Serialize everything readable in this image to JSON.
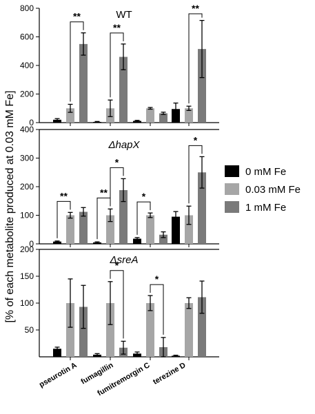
{
  "figure": {
    "ylabel": "[% of each metabolite produced at 0.03 mM Fe]",
    "legend": {
      "placement": "right",
      "entries": [
        {
          "label": "0 mM Fe",
          "color": "#000000"
        },
        {
          "label": "0.03 mM Fe",
          "color": "#a6a6a6"
        },
        {
          "label": "1 mM Fe",
          "color": "#7a7a7a"
        }
      ]
    }
  },
  "chart_data": [
    {
      "type": "bar",
      "title": "WT",
      "categories": [
        "pseurotin A",
        "fumagillin",
        "fumitremorgin C",
        "terezine D"
      ],
      "ylim": [
        0,
        800
      ],
      "yticks": [
        0,
        200,
        400,
        600,
        800
      ],
      "series": [
        {
          "name": "0 mM Fe",
          "values": [
            20,
            5,
            12,
            95
          ],
          "errors": [
            8,
            3,
            4,
            42
          ]
        },
        {
          "name": "0.03 mM Fe",
          "values": [
            100,
            100,
            100,
            100
          ],
          "errors": [
            28,
            58,
            6,
            15
          ]
        },
        {
          "name": "1 mM Fe",
          "values": [
            550,
            460,
            65,
            515
          ],
          "errors": [
            78,
            90,
            8,
            200
          ]
        }
      ],
      "significance": [
        {
          "category": 0,
          "from": 1,
          "to": 2,
          "label": "**"
        },
        {
          "category": 1,
          "from": 1,
          "to": 2,
          "label": "**"
        },
        {
          "category": 3,
          "from": 1,
          "to": 2,
          "label": "**"
        }
      ]
    },
    {
      "type": "bar",
      "title": "ΔhapX",
      "categories": [
        "pseurotin A",
        "fumagillin",
        "fumitremorgin C",
        "terezine D"
      ],
      "ylim": [
        0,
        400
      ],
      "yticks": [
        0,
        100,
        200,
        300,
        400
      ],
      "series": [
        {
          "name": "0 mM Fe",
          "values": [
            8,
            5,
            18,
            95
          ],
          "errors": [
            2,
            2,
            4,
            18
          ]
        },
        {
          "name": "0.03 mM Fe",
          "values": [
            100,
            100,
            100,
            100
          ],
          "errors": [
            10,
            22,
            8,
            32
          ]
        },
        {
          "name": "1 mM Fe",
          "values": [
            112,
            188,
            32,
            250
          ],
          "errors": [
            15,
            40,
            10,
            55
          ]
        }
      ],
      "significance": [
        {
          "category": 0,
          "from": 0,
          "to": 1,
          "label": "**"
        },
        {
          "category": 1,
          "from": 0,
          "to": 1,
          "label": "**"
        },
        {
          "category": 1,
          "from": 1,
          "to": 2,
          "label": "*"
        },
        {
          "category": 2,
          "from": 0,
          "to": 1,
          "label": "*"
        },
        {
          "category": 3,
          "from": 1,
          "to": 2,
          "label": "*"
        }
      ]
    },
    {
      "type": "bar",
      "title": "ΔsreA",
      "categories": [
        "pseurotin A",
        "fumagillin",
        "fumitremorgin C",
        "terezine D"
      ],
      "ylim": [
        0,
        200
      ],
      "yticks": [
        0,
        50,
        100,
        150,
        200
      ],
      "series": [
        {
          "name": "0 mM Fe",
          "values": [
            15,
            4,
            6,
            2
          ],
          "errors": [
            3,
            2,
            3,
            1
          ]
        },
        {
          "name": "0.03 mM Fe",
          "values": [
            100,
            100,
            100,
            100
          ],
          "errors": [
            45,
            40,
            14,
            10
          ]
        },
        {
          "name": "1 mM Fe",
          "values": [
            93,
            17,
            18,
            111
          ],
          "errors": [
            40,
            12,
            18,
            30
          ]
        }
      ],
      "significance": [
        {
          "category": 1,
          "from": 1,
          "to": 2,
          "label": "*"
        },
        {
          "category": 2,
          "from": 1,
          "to": 2,
          "label": "*"
        }
      ]
    }
  ]
}
